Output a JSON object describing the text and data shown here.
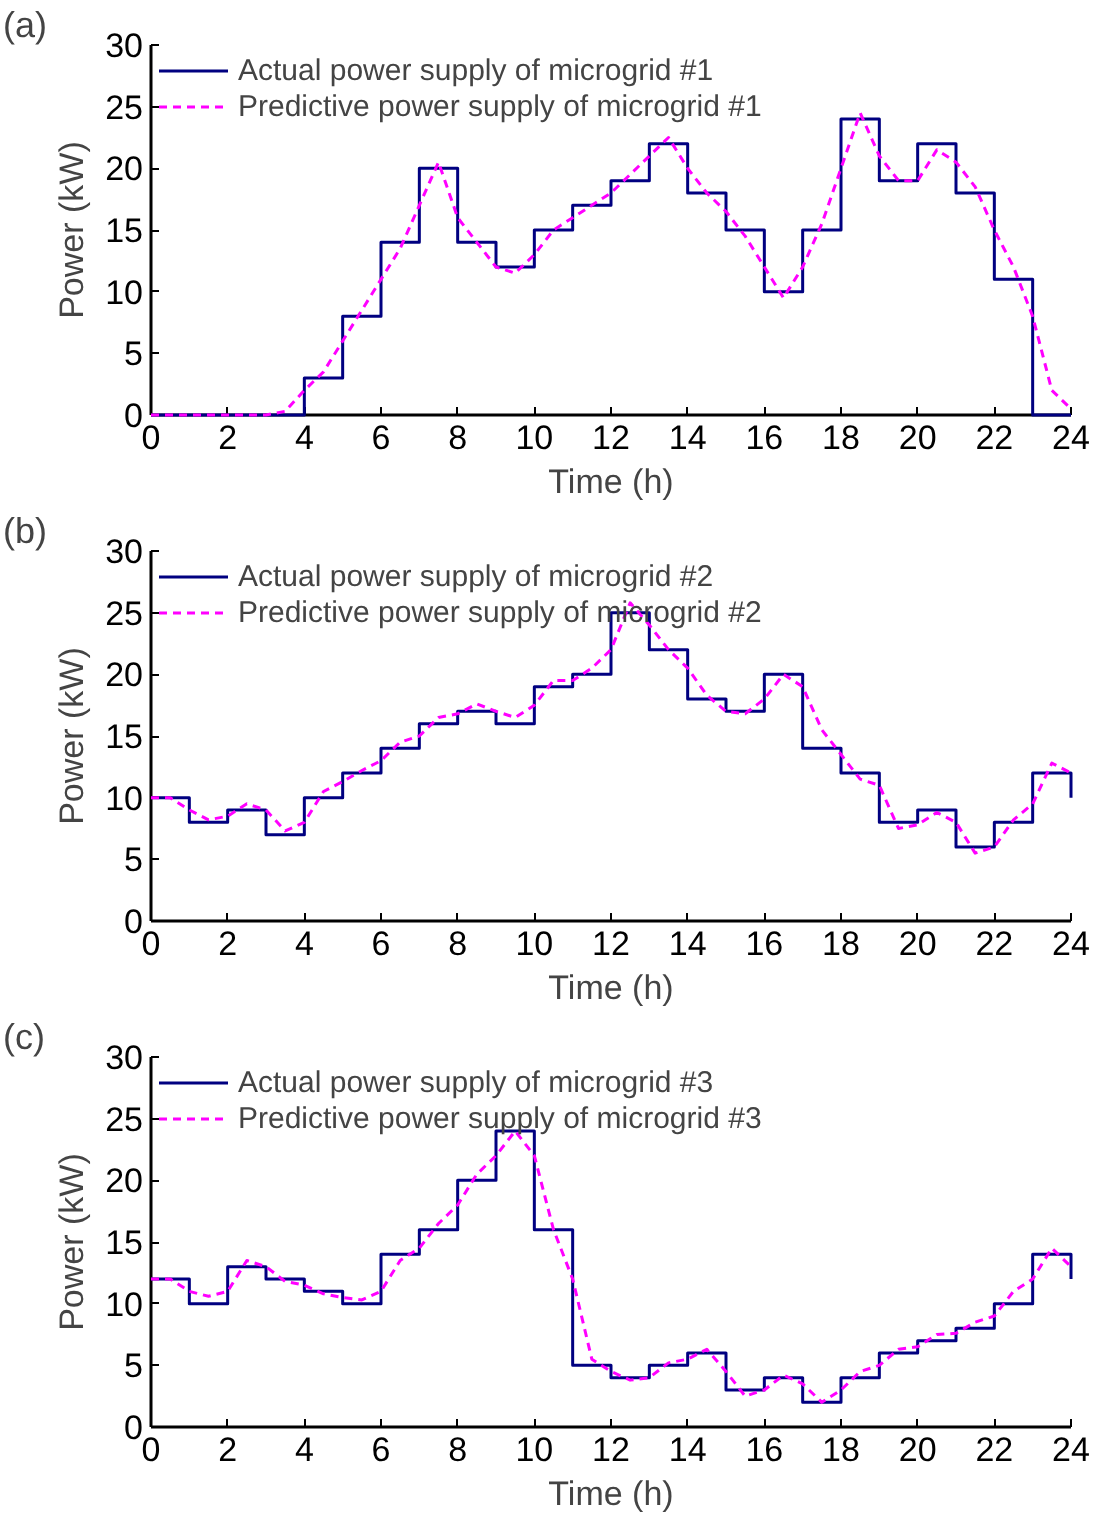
{
  "chart_data": [
    {
      "type": "step",
      "title": "(a)",
      "xlabel": "Time (h)",
      "ylabel": "Power (kW)",
      "xlim": [
        0,
        24
      ],
      "ylim": [
        0,
        30
      ],
      "xticks": [
        0,
        2,
        4,
        6,
        8,
        10,
        12,
        14,
        16,
        18,
        20,
        22,
        24
      ],
      "yticks": [
        0,
        5,
        10,
        15,
        20,
        25,
        30
      ],
      "grid": false,
      "legend": "top left",
      "series": [
        {
          "name": "Actual power supply of microgrid #1",
          "color": "#000080",
          "line_style": "solid",
          "x": [
            0,
            1,
            2,
            3,
            4,
            5,
            6,
            7,
            8,
            9,
            10,
            11,
            12,
            13,
            14,
            15,
            16,
            17,
            18,
            19,
            20,
            21,
            22,
            23,
            24
          ],
          "values": [
            0,
            0,
            0,
            0,
            3,
            8,
            14,
            20,
            14,
            12,
            15,
            17,
            19,
            22,
            18,
            15,
            10,
            15,
            24,
            19,
            22,
            18,
            11,
            0,
            0
          ]
        },
        {
          "name": "Predictive power supply of microgrid #1",
          "type": "line",
          "color": "#ff00ff",
          "line_style": "dashed",
          "x": [
            0,
            0.5,
            1,
            1.5,
            2,
            2.5,
            3,
            3.5,
            4,
            4.5,
            5,
            5.5,
            6,
            6.5,
            7,
            7.5,
            8,
            8.5,
            9,
            9.5,
            10,
            10.5,
            11,
            11.5,
            12,
            12.5,
            13,
            13.5,
            14,
            14.5,
            15,
            15.5,
            16,
            16.5,
            17,
            17.5,
            18,
            18.5,
            19,
            19.5,
            20,
            20.5,
            21,
            21.5,
            22,
            22.5,
            23,
            23.5,
            24
          ],
          "values": [
            0,
            0,
            0,
            0,
            0,
            0,
            0,
            0.3,
            2,
            3.5,
            6,
            8.5,
            11,
            13.5,
            17,
            20.5,
            16,
            14,
            12,
            11.5,
            13,
            15,
            16,
            17,
            18,
            19.5,
            21,
            22.5,
            20,
            18,
            16.5,
            14.5,
            12,
            9.5,
            12,
            15.5,
            20,
            24.5,
            21,
            19,
            19,
            21.5,
            20.5,
            18.5,
            15,
            12,
            8,
            2,
            0.5
          ]
        }
      ]
    },
    {
      "type": "step",
      "title": "(b)",
      "xlabel": "Time (h)",
      "ylabel": "Power (kW)",
      "xlim": [
        0,
        24
      ],
      "ylim": [
        0,
        30
      ],
      "xticks": [
        0,
        2,
        4,
        6,
        8,
        10,
        12,
        14,
        16,
        18,
        20,
        22,
        24
      ],
      "yticks": [
        0,
        5,
        10,
        15,
        20,
        25,
        30
      ],
      "grid": false,
      "legend": "top left",
      "series": [
        {
          "name": "Actual power supply of microgrid #2",
          "color": "#000080",
          "line_style": "solid",
          "x": [
            0,
            1,
            2,
            3,
            4,
            5,
            6,
            7,
            8,
            9,
            10,
            11,
            12,
            13,
            14,
            15,
            16,
            17,
            18,
            19,
            20,
            21,
            22,
            23,
            24
          ],
          "values": [
            10,
            8,
            9,
            7,
            10,
            12,
            14,
            16,
            17,
            16,
            19,
            20,
            25,
            22,
            18,
            17,
            20,
            14,
            12,
            8,
            9,
            6,
            8,
            12,
            10
          ]
        },
        {
          "name": "Predictive power supply of microgrid #2",
          "type": "line",
          "color": "#ff00ff",
          "line_style": "dashed",
          "x": [
            0,
            0.5,
            1,
            1.5,
            2,
            2.5,
            3,
            3.5,
            4,
            4.5,
            5,
            5.5,
            6,
            6.5,
            7,
            7.5,
            8,
            8.5,
            9,
            9.5,
            10,
            10.5,
            11,
            11.5,
            12,
            12.5,
            13,
            13.5,
            14,
            14.5,
            15,
            15.5,
            16,
            16.5,
            17,
            17.5,
            18,
            18.5,
            19,
            19.5,
            20,
            20.5,
            21,
            21.5,
            22,
            22.5,
            23,
            23.5,
            24
          ],
          "values": [
            10,
            10,
            9,
            8.2,
            8.5,
            9.5,
            9,
            7.3,
            8,
            10.5,
            11.3,
            12.2,
            13,
            14.5,
            15,
            16.5,
            16.8,
            17.6,
            17,
            16.5,
            17.5,
            19.5,
            19.5,
            20.5,
            22,
            25.8,
            24,
            22,
            20.5,
            18.3,
            17,
            16.8,
            18,
            20,
            19,
            15.5,
            13.5,
            11.5,
            11,
            7.5,
            7.8,
            8.8,
            8,
            5.5,
            6,
            8.2,
            9.5,
            12.8,
            12
          ]
        }
      ]
    },
    {
      "type": "step",
      "title": "(c)",
      "xlabel": "Time (h)",
      "ylabel": "Power (kW)",
      "xlim": [
        0,
        24
      ],
      "ylim": [
        0,
        30
      ],
      "xticks": [
        0,
        2,
        4,
        6,
        8,
        10,
        12,
        14,
        16,
        18,
        20,
        22,
        24
      ],
      "yticks": [
        0,
        5,
        10,
        15,
        20,
        25,
        30
      ],
      "grid": false,
      "legend": "top left",
      "series": [
        {
          "name": "Actual power supply of microgrid #3",
          "color": "#000080",
          "line_style": "solid",
          "x": [
            0,
            1,
            2,
            3,
            4,
            5,
            6,
            7,
            8,
            9,
            10,
            11,
            12,
            13,
            14,
            15,
            16,
            17,
            18,
            19,
            20,
            21,
            22,
            23,
            24
          ],
          "values": [
            12,
            10,
            13,
            12,
            11,
            10,
            14,
            16,
            20,
            24,
            16,
            5,
            4,
            5,
            6,
            3,
            4,
            2,
            4,
            6,
            7,
            8,
            10,
            14,
            12
          ]
        },
        {
          "name": "Predictive power supply of microgrid #3",
          "type": "line",
          "color": "#ff00ff",
          "line_style": "dashed",
          "x": [
            0,
            0.5,
            1,
            1.5,
            2,
            2.5,
            3,
            3.5,
            4,
            4.5,
            5,
            5.5,
            6,
            6.5,
            7,
            7.5,
            8,
            8.5,
            9,
            9.5,
            10,
            10.5,
            11,
            11.5,
            12,
            12.5,
            13,
            13.5,
            14,
            14.5,
            15,
            15.5,
            16,
            16.5,
            17,
            17.5,
            18,
            18.5,
            19,
            19.5,
            20,
            20.5,
            21,
            21.5,
            22,
            22.5,
            23,
            23.5,
            24
          ],
          "values": [
            12,
            12,
            11,
            10.6,
            11,
            13.5,
            13,
            11.8,
            11.5,
            10.8,
            10.5,
            10.3,
            11,
            13.5,
            14.5,
            16.5,
            18,
            20.5,
            22,
            24,
            22,
            16,
            12,
            5.5,
            4.5,
            3.8,
            4,
            5.2,
            5.5,
            6.3,
            4.5,
            2.5,
            3,
            4.2,
            3.5,
            2,
            3,
            4.5,
            5,
            6.3,
            6.5,
            7.5,
            7.6,
            8.5,
            9,
            11,
            12,
            14.5,
            13
          ]
        }
      ]
    }
  ]
}
